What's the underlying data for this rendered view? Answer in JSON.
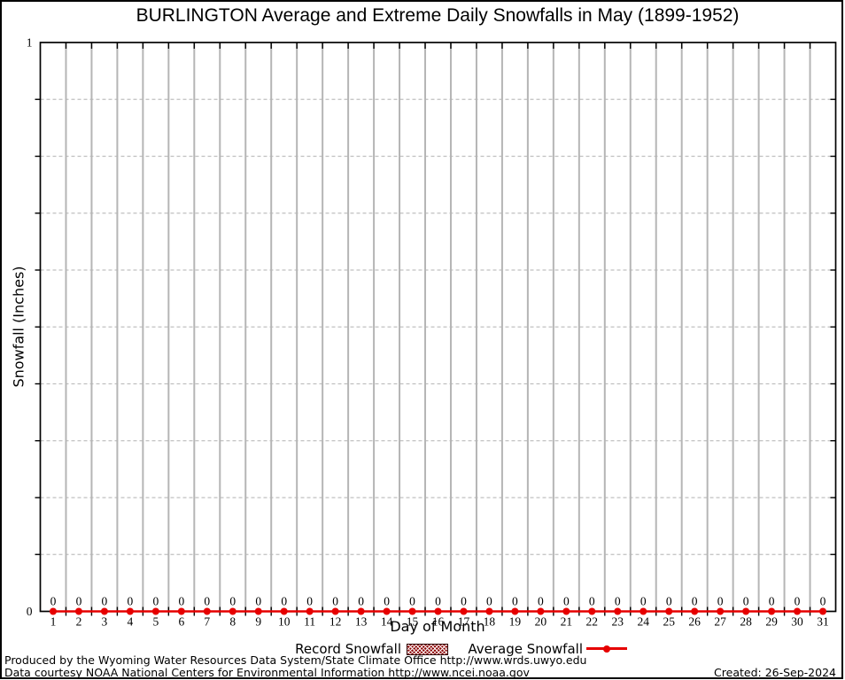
{
  "chart_data": {
    "type": "line",
    "title": "BURLINGTON Average and Extreme Daily Snowfalls in May (1899-1952)",
    "xlabel": "Day of Month",
    "ylabel": "Snowfall (Inches)",
    "x": [
      1,
      2,
      3,
      4,
      5,
      6,
      7,
      8,
      9,
      10,
      11,
      12,
      13,
      14,
      15,
      16,
      17,
      18,
      19,
      20,
      21,
      22,
      23,
      24,
      25,
      26,
      27,
      28,
      29,
      30,
      31
    ],
    "series": [
      {
        "name": "Record Snowfall",
        "type": "bar",
        "color": "#8b0000",
        "values": [
          0,
          0,
          0,
          0,
          0,
          0,
          0,
          0,
          0,
          0,
          0,
          0,
          0,
          0,
          0,
          0,
          0,
          0,
          0,
          0,
          0,
          0,
          0,
          0,
          0,
          0,
          0,
          0,
          0,
          0,
          0
        ]
      },
      {
        "name": "Average Snowfall",
        "type": "line",
        "color": "#e60000",
        "values": [
          0,
          0,
          0,
          0,
          0,
          0,
          0,
          0,
          0,
          0,
          0,
          0,
          0,
          0,
          0,
          0,
          0,
          0,
          0,
          0,
          0,
          0,
          0,
          0,
          0,
          0,
          0,
          0,
          0,
          0,
          0
        ]
      }
    ],
    "point_labels": [
      "0",
      "0",
      "0",
      "0",
      "0",
      "0",
      "0",
      "0",
      "0",
      "0",
      "0",
      "0",
      "0",
      "0",
      "0",
      "0",
      "0",
      "0",
      "0",
      "0",
      "0",
      "0",
      "0",
      "0",
      "0",
      "0",
      "0",
      "0",
      "0",
      "0",
      "0"
    ],
    "ylim": [
      0,
      1
    ],
    "yticks": [
      {
        "value": 0,
        "label": "0"
      },
      {
        "value": 1,
        "label": "1"
      }
    ],
    "y_minor_step": 0.1,
    "grid": {
      "vertical": "on",
      "horizontal_dashed": "on"
    },
    "legend_position": "below-x-axis",
    "colors": {
      "grid_major": "#b5b5b5",
      "grid_minor": "#c0c0c0",
      "frame": "#000000",
      "average_line": "#e60000",
      "record_fill": "#8b0000"
    }
  },
  "legend": {
    "record_label": "Record Snowfall",
    "average_label": "Average Snowfall"
  },
  "footer": {
    "line1": "Produced by the Wyoming Water Resources Data System/State Climate Office http://www.wrds.uwyo.edu",
    "line2": "Data courtesy NOAA National Centers for Environmental Information http://www.ncei.noaa.gov",
    "created": "Created: 26-Sep-2024"
  }
}
